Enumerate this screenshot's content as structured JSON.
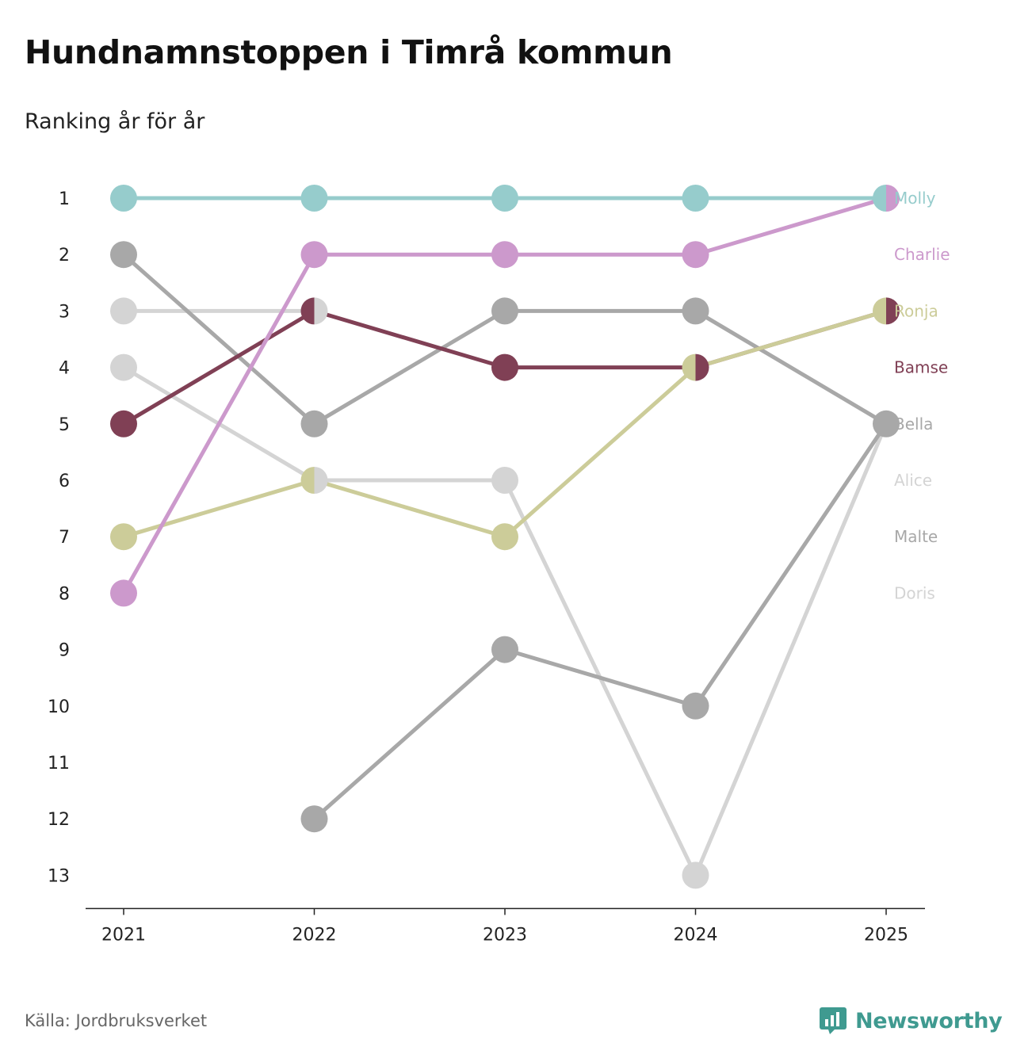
{
  "title": "Hundnamnstoppen i Timrå kommun",
  "subtitle": "Ranking år för år",
  "source": "Källa: Jordbruksverket",
  "brand": {
    "name": "Newsworthy",
    "icon": "newsworthy-logo-icon",
    "color": "#3f9a90"
  },
  "chart_data": {
    "type": "line",
    "title": "Hundnamnstoppen i Timrå kommun",
    "subtitle": "Ranking år för år",
    "xlabel": "",
    "ylabel": "",
    "x": [
      "2021",
      "2022",
      "2023",
      "2024",
      "2025"
    ],
    "ylim": [
      1,
      13
    ],
    "y_inverted": true,
    "yticks": [
      "1",
      "2",
      "3",
      "4",
      "5",
      "6",
      "7",
      "8",
      "9",
      "10",
      "11",
      "12",
      "13"
    ],
    "grid": false,
    "legend": "right-end-labels",
    "series": [
      {
        "name": "Molly",
        "color": "#96cccc",
        "values": [
          1,
          1,
          1,
          1,
          1
        ]
      },
      {
        "name": "Charlie",
        "color": "#cc99cc",
        "values": [
          8,
          2,
          2,
          2,
          1
        ]
      },
      {
        "name": "Ronja",
        "color": "#cccc99",
        "values": [
          7,
          6,
          7,
          4,
          3
        ]
      },
      {
        "name": "Bamse",
        "color": "#804055",
        "values": [
          5,
          3,
          4,
          4,
          3
        ]
      },
      {
        "name": "Bella",
        "color": "#a8a8a8",
        "values": [
          2,
          5,
          3,
          3,
          5
        ]
      },
      {
        "name": "Alice",
        "color": "#d4d4d4",
        "values": [
          3,
          3,
          null,
          null,
          null
        ]
      },
      {
        "name": "Malte",
        "color": "#a8a8a8",
        "values": [
          null,
          12,
          9,
          10,
          5
        ]
      },
      {
        "name": "Doris",
        "color": "#d4d4d4",
        "values": [
          4,
          6,
          6,
          13,
          5
        ]
      }
    ],
    "end_labels": [
      "Molly",
      "Charlie",
      "Ronja",
      "Bamse",
      "Bella",
      "Alice",
      "Malte",
      "Doris"
    ]
  }
}
